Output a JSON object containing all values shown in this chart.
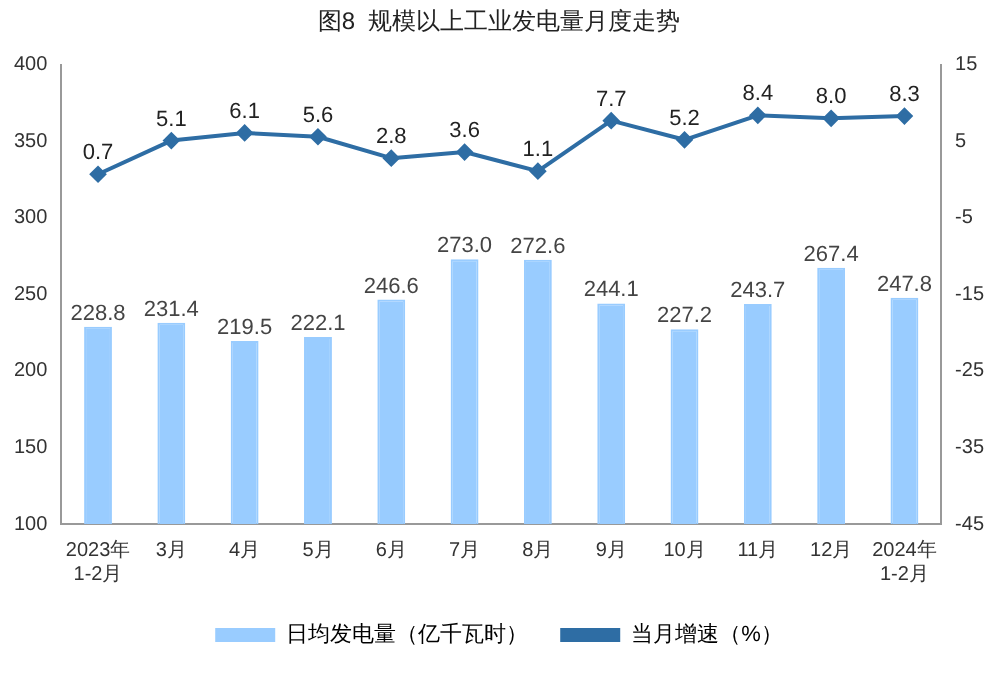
{
  "chart_data": {
    "type": "bar",
    "title": "图8  规模以上工业发电量月度走势",
    "categories": [
      "2023年\n1-2月",
      "3月",
      "4月",
      "5月",
      "6月",
      "7月",
      "8月",
      "9月",
      "10月",
      "11月",
      "12月",
      "2024年\n1-2月"
    ],
    "series": [
      {
        "name": "日均发电量（亿千瓦时）",
        "color": "#99ccff",
        "values": [
          228.8,
          231.4,
          219.5,
          222.1,
          246.6,
          273.0,
          272.6,
          244.1,
          227.2,
          243.7,
          267.4,
          247.8
        ],
        "value_labels": [
          "228.8",
          "231.4",
          "219.5",
          "222.1",
          "246.6",
          "273.0",
          "272.6",
          "244.1",
          "227.2",
          "243.7",
          "267.4",
          "247.8"
        ]
      },
      {
        "name": "当月增速（%）",
        "type": "line",
        "axis": "y2",
        "color": "#2e6da4",
        "values": [
          0.7,
          5.1,
          6.1,
          5.6,
          2.8,
          3.6,
          1.1,
          7.7,
          5.2,
          8.4,
          8.0,
          8.3
        ],
        "value_labels": [
          "0.7",
          "5.1",
          "6.1",
          "5.6",
          "2.8",
          "3.6",
          "1.1",
          "7.7",
          "5.2",
          "8.4",
          "8.0",
          "8.3"
        ]
      }
    ],
    "ylim": [
      100,
      400
    ],
    "yticks": [
      100,
      150,
      200,
      250,
      300,
      350,
      400
    ],
    "y2lim": [
      -45,
      15
    ],
    "y2ticks": [
      -45,
      -35,
      -25,
      -15,
      -5,
      5,
      15
    ],
    "grid": false,
    "legend": "bottom",
    "marker": "diamond",
    "line_style": "solid"
  }
}
